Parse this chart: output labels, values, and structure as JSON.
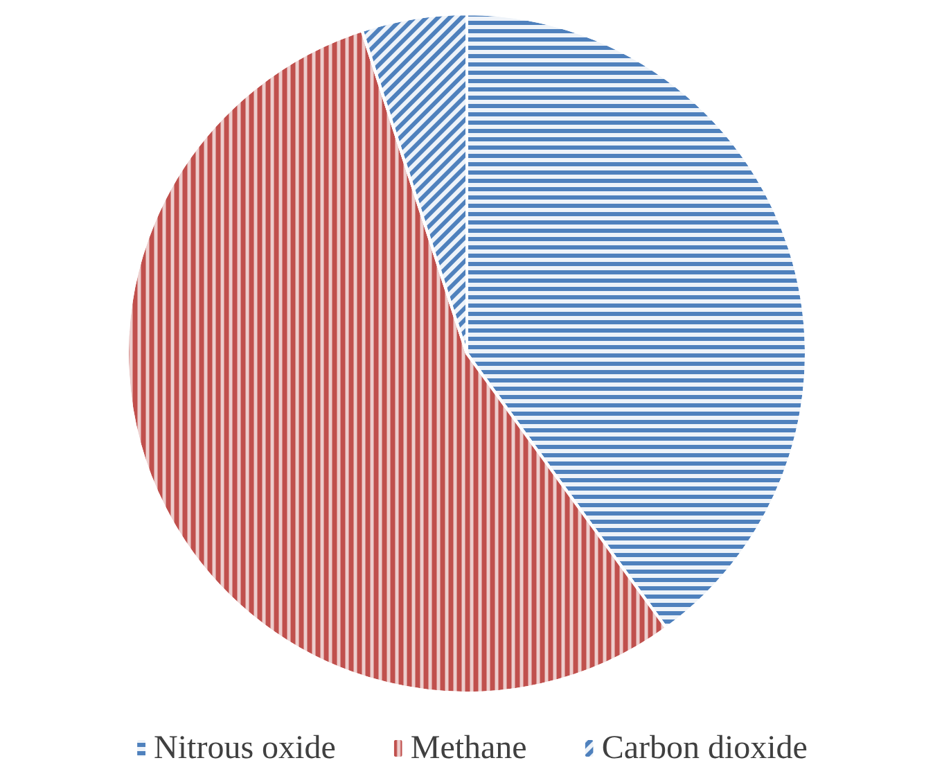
{
  "chart_data": {
    "type": "pie",
    "categories": [
      "Nitrous oxide",
      "Methane",
      "Carbon dioxide"
    ],
    "values": [
      40,
      55,
      5
    ],
    "colors": [
      "#4f81bd",
      "#c0504d",
      "#4f81bd"
    ],
    "legend": "bottom"
  }
}
